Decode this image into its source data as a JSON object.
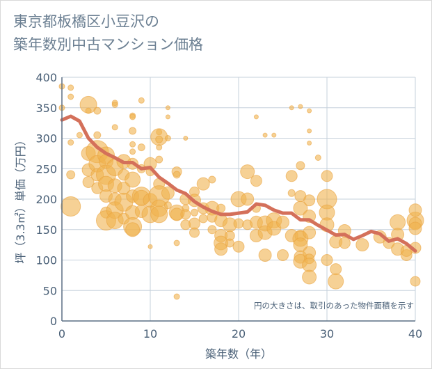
{
  "title_lines": [
    "東京都板橋区小豆沢の",
    "築年数別中古マンション価格"
  ],
  "chart_data": {
    "type": "scatter",
    "xlabel": "築年数（年）",
    "ylabel": "坪（3.3㎡）単価（万円）",
    "xlim": [
      0,
      40
    ],
    "ylim": [
      0,
      400
    ],
    "xticks": [
      0,
      10,
      20,
      30,
      40
    ],
    "yticks": [
      0,
      50,
      100,
      150,
      200,
      250,
      300,
      350,
      400
    ],
    "grid": true,
    "annotation": "円の大きさは、取引のあった物件面積を示す",
    "colors": {
      "bubble": "#f0b24f",
      "line": "#d4705a",
      "grid": "#c5d0db",
      "axis": "#5a6f83"
    },
    "series": [
      {
        "type": "bubble",
        "points": [
          [
            0,
            385,
            4
          ],
          [
            1,
            383,
            4
          ],
          [
            0,
            350,
            4
          ],
          [
            1,
            368,
            4
          ],
          [
            2,
            305,
            4
          ],
          [
            1,
            293,
            4
          ],
          [
            1,
            240,
            6
          ],
          [
            1,
            188,
            14
          ],
          [
            3,
            355,
            12
          ],
          [
            3,
            345,
            4
          ],
          [
            3,
            275,
            10
          ],
          [
            3,
            248,
            9
          ],
          [
            3,
            228,
            8
          ],
          [
            4,
            345,
            5
          ],
          [
            4,
            305,
            5
          ],
          [
            4,
            278,
            16
          ],
          [
            4,
            258,
            12
          ],
          [
            4,
            240,
            9
          ],
          [
            4,
            218,
            8
          ],
          [
            5,
            272,
            12
          ],
          [
            5,
            262,
            10
          ],
          [
            5,
            240,
            14
          ],
          [
            5,
            225,
            11
          ],
          [
            5,
            205,
            9
          ],
          [
            5,
            178,
            8
          ],
          [
            5,
            165,
            14
          ],
          [
            6,
            358,
            4
          ],
          [
            6,
            355,
            4
          ],
          [
            6,
            318,
            4
          ],
          [
            6,
            252,
            12
          ],
          [
            6,
            222,
            10
          ],
          [
            6,
            200,
            9
          ],
          [
            6,
            182,
            12
          ],
          [
            6,
            165,
            12
          ],
          [
            7,
            262,
            10
          ],
          [
            7,
            240,
            8
          ],
          [
            7,
            218,
            9
          ],
          [
            7,
            195,
            13
          ],
          [
            7,
            168,
            8
          ],
          [
            8,
            337,
            4
          ],
          [
            8,
            335,
            4
          ],
          [
            8,
            312,
            5
          ],
          [
            8,
            290,
            4
          ],
          [
            8,
            278,
            4
          ],
          [
            8,
            258,
            8
          ],
          [
            8,
            232,
            11
          ],
          [
            8,
            205,
            9
          ],
          [
            8,
            178,
            10
          ],
          [
            8,
            155,
            13
          ],
          [
            8,
            150,
            10
          ],
          [
            9,
            362,
            4
          ],
          [
            9,
            285,
            5
          ],
          [
            9,
            250,
            6
          ],
          [
            9,
            205,
            13
          ],
          [
            9,
            202,
            11
          ],
          [
            9,
            180,
            9
          ],
          [
            10,
            258,
            9
          ],
          [
            10,
            245,
            6
          ],
          [
            10,
            198,
            10
          ],
          [
            10,
            175,
            12
          ],
          [
            10,
            122,
            3
          ],
          [
            11,
            310,
            4
          ],
          [
            11,
            302,
            12
          ],
          [
            11,
            298,
            5
          ],
          [
            11,
            285,
            4
          ],
          [
            11,
            265,
            5
          ],
          [
            11,
            225,
            8
          ],
          [
            11,
            205,
            15
          ],
          [
            11,
            185,
            12
          ],
          [
            11,
            175,
            12
          ],
          [
            12,
            350,
            3
          ],
          [
            12,
            335,
            3
          ],
          [
            12,
            300,
            4
          ],
          [
            12,
            210,
            9
          ],
          [
            12,
            190,
            5
          ],
          [
            13,
            245,
            7
          ],
          [
            13,
            240,
            5
          ],
          [
            13,
            178,
            11
          ],
          [
            13,
            175,
            9
          ],
          [
            13,
            128,
            4
          ],
          [
            13,
            40,
            4
          ],
          [
            14,
            300,
            3
          ],
          [
            14,
            200,
            8
          ],
          [
            14,
            185,
            5
          ],
          [
            14,
            175,
            7
          ],
          [
            14,
            158,
            7
          ],
          [
            15,
            212,
            7
          ],
          [
            15,
            198,
            9
          ],
          [
            15,
            178,
            5
          ],
          [
            15,
            160,
            8
          ],
          [
            15,
            145,
            7
          ],
          [
            16,
            225,
            9
          ],
          [
            16,
            185,
            8
          ],
          [
            16,
            168,
            6
          ],
          [
            17,
            232,
            5
          ],
          [
            17,
            185,
            10
          ],
          [
            17,
            170,
            7
          ],
          [
            17,
            150,
            6
          ],
          [
            18,
            185,
            6
          ],
          [
            18,
            165,
            9
          ],
          [
            18,
            140,
            9
          ],
          [
            18,
            128,
            10
          ],
          [
            18,
            118,
            9
          ],
          [
            19,
            158,
            10
          ],
          [
            19,
            140,
            7
          ],
          [
            19,
            128,
            6
          ],
          [
            20,
            200,
            11
          ],
          [
            20,
            160,
            7
          ],
          [
            20,
            122,
            8
          ],
          [
            21,
            245,
            10
          ],
          [
            21,
            200,
            9
          ],
          [
            21,
            158,
            7
          ],
          [
            22,
            335,
            3
          ],
          [
            22,
            230,
            8
          ],
          [
            22,
            185,
            6
          ],
          [
            22,
            162,
            9
          ],
          [
            22,
            140,
            9
          ],
          [
            23,
            160,
            11
          ],
          [
            23,
            145,
            10
          ],
          [
            23,
            305,
            3
          ],
          [
            23,
            108,
            9
          ],
          [
            24,
            305,
            3
          ],
          [
            24,
            165,
            11
          ],
          [
            24,
            152,
            10
          ],
          [
            25,
            162,
            9
          ],
          [
            25,
            108,
            8
          ],
          [
            26,
            350,
            3
          ],
          [
            26,
            238,
            8
          ],
          [
            26,
            210,
            5
          ],
          [
            26,
            140,
            9
          ],
          [
            27,
            352,
            3
          ],
          [
            27,
            255,
            6
          ],
          [
            27,
            205,
            8
          ],
          [
            27,
            185,
            10
          ],
          [
            27,
            140,
            8
          ],
          [
            27,
            135,
            11
          ],
          [
            27,
            125,
            10
          ],
          [
            27,
            105,
            9
          ],
          [
            27,
            98,
            10
          ],
          [
            28,
            345,
            3
          ],
          [
            28,
            312,
            3
          ],
          [
            28,
            292,
            3
          ],
          [
            28,
            198,
            8
          ],
          [
            28,
            172,
            9
          ],
          [
            28,
            145,
            9
          ],
          [
            28,
            112,
            9
          ],
          [
            28,
            102,
            7
          ],
          [
            28,
            92,
            10
          ],
          [
            28,
            72,
            10
          ],
          [
            29,
            268,
            4
          ],
          [
            30,
            238,
            8
          ],
          [
            30,
            200,
            14
          ],
          [
            30,
            178,
            11
          ],
          [
            30,
            158,
            10
          ],
          [
            30,
            100,
            8
          ],
          [
            31,
            130,
            9
          ],
          [
            31,
            85,
            8
          ],
          [
            31,
            65,
            11
          ],
          [
            32,
            148,
            9
          ],
          [
            32,
            128,
            8
          ],
          [
            34,
            125,
            9
          ],
          [
            36,
            138,
            9
          ],
          [
            37,
            128,
            8
          ],
          [
            38,
            162,
            11
          ],
          [
            38,
            142,
            9
          ],
          [
            38,
            118,
            9
          ],
          [
            39,
            108,
            8
          ],
          [
            39,
            115,
            8
          ],
          [
            40,
            165,
            12
          ],
          [
            40,
            160,
            9
          ],
          [
            40,
            182,
            9
          ],
          [
            40,
            152,
            9
          ],
          [
            40,
            120,
            8
          ],
          [
            40,
            65,
            7
          ]
        ]
      },
      {
        "type": "line",
        "points": [
          [
            0,
            330
          ],
          [
            1,
            336
          ],
          [
            2,
            328
          ],
          [
            3,
            300
          ],
          [
            4,
            285
          ],
          [
            5,
            275
          ],
          [
            6,
            268
          ],
          [
            7,
            260
          ],
          [
            8,
            260
          ],
          [
            9,
            250
          ],
          [
            10,
            252
          ],
          [
            11,
            236
          ],
          [
            12,
            226
          ],
          [
            13,
            215
          ],
          [
            14,
            209
          ],
          [
            15,
            196
          ],
          [
            16,
            187
          ],
          [
            17,
            180
          ],
          [
            18,
            175
          ],
          [
            19,
            175
          ],
          [
            20,
            177
          ],
          [
            21,
            179
          ],
          [
            22,
            192
          ],
          [
            23,
            190
          ],
          [
            24,
            182
          ],
          [
            25,
            177
          ],
          [
            26,
            177
          ],
          [
            27,
            166
          ],
          [
            28,
            166
          ],
          [
            29,
            157
          ],
          [
            30,
            149
          ],
          [
            31,
            141
          ],
          [
            32,
            142
          ],
          [
            33,
            134
          ],
          [
            34,
            140
          ],
          [
            35,
            147
          ],
          [
            36,
            143
          ],
          [
            37,
            131
          ],
          [
            38,
            135
          ],
          [
            39,
            127
          ],
          [
            40,
            115
          ]
        ]
      }
    ]
  }
}
